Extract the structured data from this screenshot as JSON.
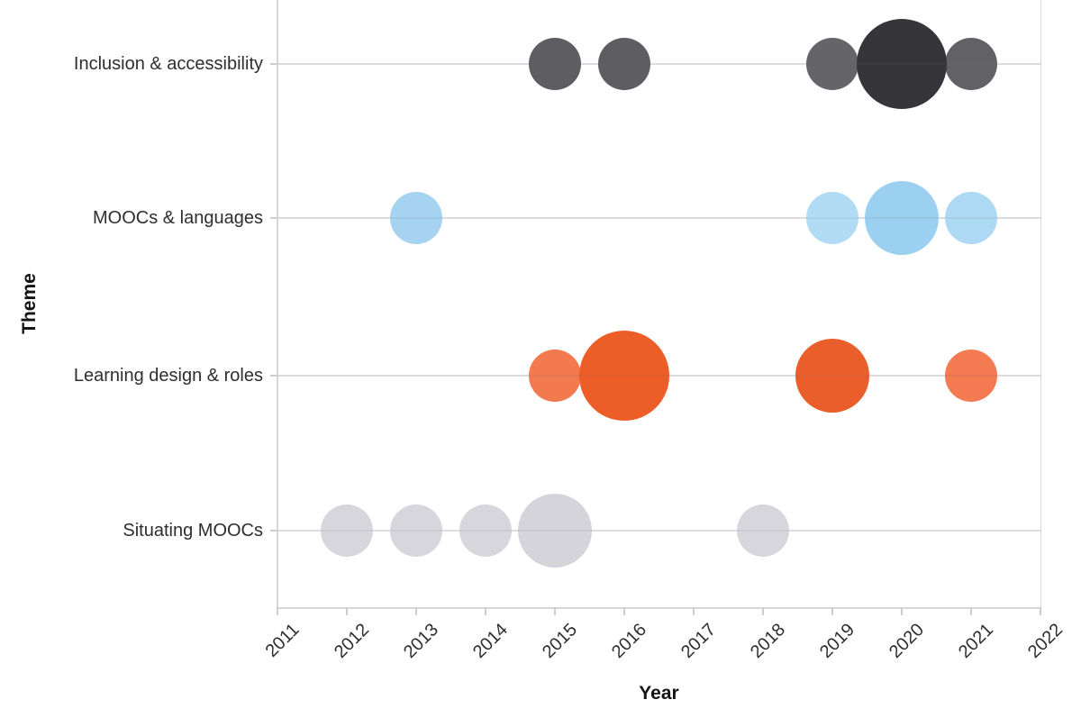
{
  "chart_data": {
    "type": "bubble",
    "title": "",
    "xlabel": "Year",
    "ylabel": "Theme",
    "x_ticks": [
      "2011",
      "2012",
      "2013",
      "2014",
      "2015",
      "2016",
      "2017",
      "2018",
      "2019",
      "2020",
      "2021",
      "2022"
    ],
    "x_range": [
      2011,
      2022
    ],
    "grid": "horizontal row lines only",
    "legend": "none",
    "categories": [
      "Inclusion & accessibility",
      "MOOCs & languages",
      "Learning design & roles",
      "Situating MOOCs"
    ],
    "size_encoding": {
      "rule": "radius_px = 29 * sqrt(count)",
      "small_r": 29,
      "medium_r": 41,
      "large_r": 50
    },
    "series": [
      {
        "name": "Inclusion & accessibility",
        "base_color": "#5e5d61",
        "points": [
          {
            "year": 2015,
            "count": 1,
            "color": "#5e5d61"
          },
          {
            "year": 2016,
            "count": 1,
            "color": "#5e5d61"
          },
          {
            "year": 2019,
            "count": 1,
            "color": "#656468"
          },
          {
            "year": 2020,
            "count": 3,
            "color": "#363539"
          },
          {
            "year": 2021,
            "count": 1,
            "color": "#626165"
          }
        ]
      },
      {
        "name": "MOOCs & languages",
        "base_color": "#a6d3f0",
        "points": [
          {
            "year": 2013,
            "count": 1,
            "color": "#a6d3f0"
          },
          {
            "year": 2019,
            "count": 1,
            "color": "#b2dbf5"
          },
          {
            "year": 2020,
            "count": 2,
            "color": "#9bd0f1"
          },
          {
            "year": 2021,
            "count": 1,
            "color": "#aed9f4"
          }
        ]
      },
      {
        "name": "Learning design & roles",
        "base_color": "#ed5d28",
        "points": [
          {
            "year": 2015,
            "count": 1,
            "color": "#f3794f"
          },
          {
            "year": 2016,
            "count": 3,
            "color": "#ed5d28"
          },
          {
            "year": 2019,
            "count": 2,
            "color": "#ea5e2b"
          },
          {
            "year": 2021,
            "count": 1,
            "color": "#f37a51"
          }
        ]
      },
      {
        "name": "Situating MOOCs",
        "base_color": "#d7d6dc",
        "points": [
          {
            "year": 2012,
            "count": 1,
            "color": "#d7d6dc"
          },
          {
            "year": 2013,
            "count": 1,
            "color": "#d7d6dc"
          },
          {
            "year": 2014,
            "count": 1,
            "color": "#d7d6dc"
          },
          {
            "year": 2015,
            "count": 2,
            "color": "#d5d4da"
          },
          {
            "year": 2018,
            "count": 1,
            "color": "#d7d6dc"
          }
        ]
      }
    ]
  }
}
